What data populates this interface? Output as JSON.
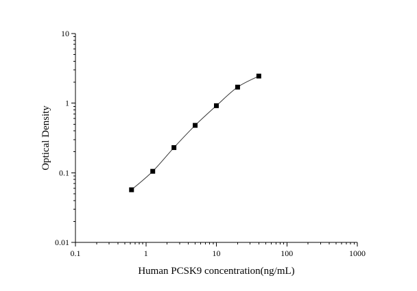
{
  "chart_data": {
    "type": "scatter",
    "x_scale": "log",
    "y_scale": "log",
    "xlabel": "Human PCSK9 concentration(ng/mL)",
    "ylabel": "Optical Density",
    "xlim": [
      0.1,
      1000
    ],
    "ylim": [
      0.01,
      10
    ],
    "x_major_ticks": [
      "0.1",
      "1",
      "10",
      "100",
      "1000"
    ],
    "y_major_ticks": [
      "0.01",
      "0.1",
      "1",
      "10"
    ],
    "grid": false,
    "legend": "none",
    "series": [
      {
        "x": [
          0.625,
          1.25,
          2.5,
          5,
          10,
          20,
          40
        ],
        "y": [
          0.057,
          0.105,
          0.23,
          0.48,
          0.92,
          1.7,
          2.45
        ],
        "marker": "square",
        "line": "fitted curve",
        "color": "#000000"
      }
    ]
  }
}
